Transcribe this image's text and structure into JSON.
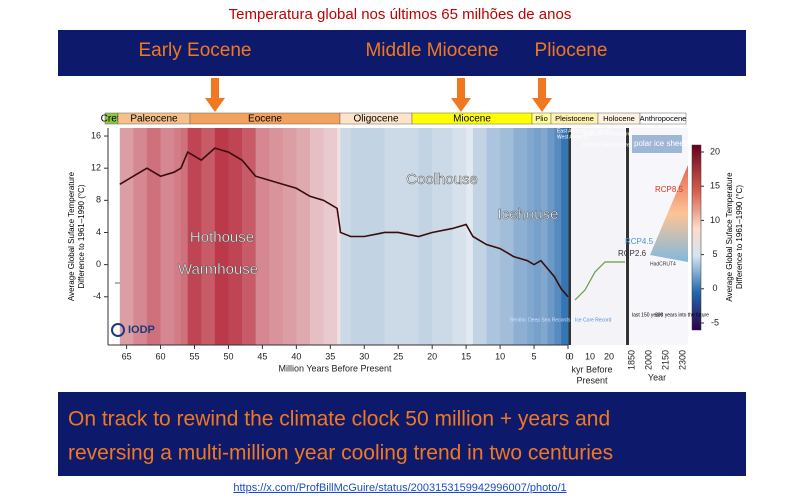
{
  "title": "Temperatura global nos últimos 65 milhões de anos",
  "banner_labels": [
    "Early Eocene",
    "Middle Miocene",
    "Pliocene"
  ],
  "epochs": [
    "Cret.",
    "Paleocene",
    "Eocene",
    "Oligocene",
    "Miocene",
    "Plio",
    "Pleistocene",
    "Holocene",
    "Anthropocene"
  ],
  "chart_data": {
    "type": "line",
    "y_label": [
      "Average Global Suface Temperature",
      "Difference to 1961–1990 (°C)"
    ],
    "x_label": "Million Years Before Present",
    "x": [
      66,
      64,
      62,
      60,
      58,
      57,
      56,
      54,
      52,
      50,
      48,
      46,
      44,
      42,
      40,
      38,
      36,
      34,
      33.5,
      32,
      30,
      27,
      25,
      22,
      20,
      17,
      15,
      14,
      12,
      10,
      8,
      6,
      5,
      4,
      3,
      2,
      1,
      0
    ],
    "values": [
      10,
      11,
      12,
      11,
      11.5,
      12,
      14,
      13,
      14.5,
      14,
      13,
      11,
      10.5,
      10,
      9.5,
      8.5,
      8,
      7,
      4,
      3.5,
      3.5,
      4,
      4,
      3.5,
      4,
      4.5,
      5,
      3.5,
      2.5,
      2,
      1,
      0.5,
      0,
      0.5,
      -0.5,
      -1.5,
      -3,
      -4
    ],
    "color": "#3a0d0d",
    "xlim": [
      67,
      0
    ],
    "ylim": [
      -10,
      17
    ],
    "xticks": [
      65,
      60,
      55,
      50,
      45,
      40,
      35,
      30,
      25,
      20,
      15,
      10,
      5,
      0
    ],
    "yticks": [
      -4,
      0,
      4,
      8,
      12,
      16
    ],
    "annotations": [
      "Hothouse",
      "Warmhouse",
      "Coolhouse",
      "Icehouse"
    ]
  },
  "kyr_panel": {
    "label": [
      "kyr Before",
      "Present"
    ],
    "ticks": [
      0,
      10,
      20
    ]
  },
  "year_panel": {
    "label": "Year",
    "ticks": [
      1850,
      2000,
      2150,
      2300
    ],
    "notes": [
      "last 150 years",
      "300 years into the future"
    ]
  },
  "scenarios": [
    "RCP8.5",
    "RCP4.5",
    "RCP2.6",
    "HadCRUT4"
  ],
  "ice_labels": [
    "East Antarctic Ice Sheet",
    "West Antarctic",
    "Southern Hemisphere",
    "Northern Hemisphere",
    "polar ice sheets"
  ],
  "record_labels": [
    "Benthic Deep Sea Records",
    "Ice Core Record"
  ],
  "colorbar": {
    "label": [
      "Average Global Suface Temperature",
      "Difference to 1961–1990 (°C)"
    ],
    "ticks": [
      20,
      15,
      10,
      5,
      0,
      -5
    ]
  },
  "logo": "IODP",
  "caption": [
    "On track to rewind the climate clock 50 million + years and",
    "reversing a multi-million year cooling trend in two centuries"
  ],
  "link": "https://x.com/ProfBillMcGuire/status/2003153159942996007/photo/1"
}
